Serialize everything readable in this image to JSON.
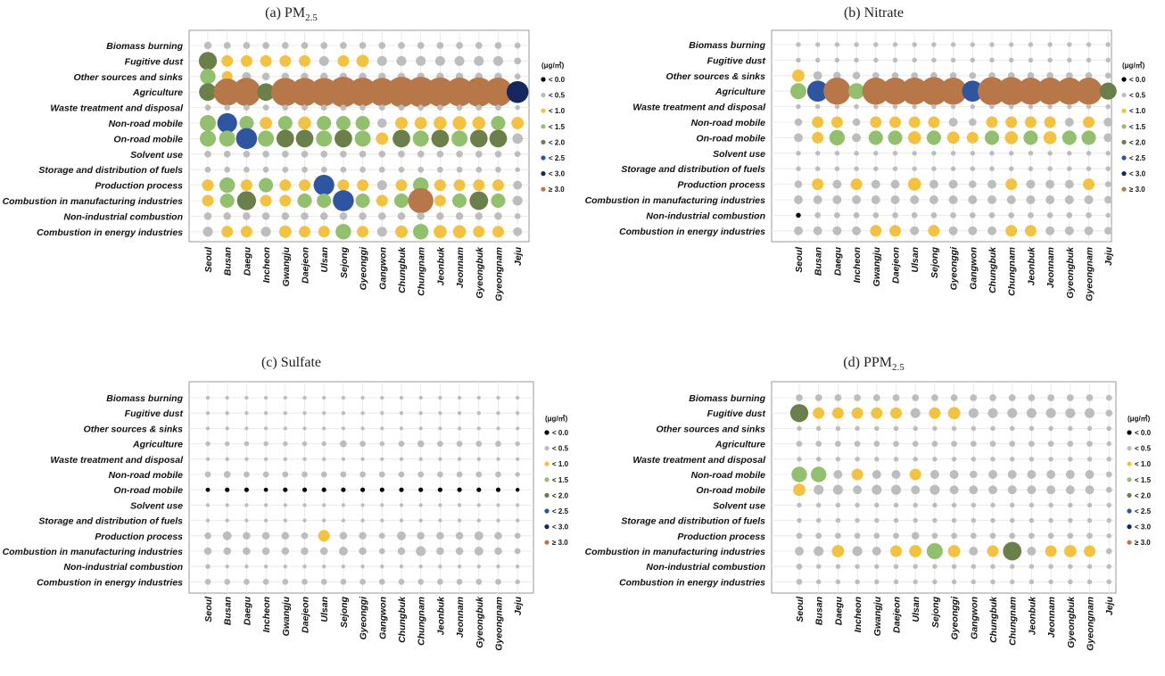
{
  "legend": {
    "unit": "(μg/㎥)",
    "bins": [
      {
        "label": "< 0.0",
        "color": "#000000"
      },
      {
        "label": "< 0.5",
        "color": "#bdbdbd"
      },
      {
        "label": "< 1.0",
        "color": "#f4c242"
      },
      {
        "label": "< 1.5",
        "color": "#92c06e"
      },
      {
        "label": "< 2.0",
        "color": "#6a7f4a"
      },
      {
        "label": "< 2.5",
        "color": "#2f55a0"
      },
      {
        "label": "< 3.0",
        "color": "#15275e"
      },
      {
        "label": "≥ 3.0",
        "color": "#b87748"
      }
    ]
  },
  "categories": [
    "Seoul",
    "Busan",
    "Daegu",
    "Incheon",
    "Gwangju",
    "Daejeon",
    "Ulsan",
    "Sejong",
    "Gyeonggi",
    "Gangwon",
    "Chungbuk",
    "Chungnam",
    "Jeonbuk",
    "Jeonnam",
    "Gyeongbuk",
    "Gyeongnam",
    "Jeju"
  ],
  "chart_data": [
    {
      "type": "bubble",
      "title_main": "(a) PM",
      "title_sub": "2.5",
      "rows": [
        "Biomass burning",
        "Fugitive dust",
        "Other sources and sinks",
        "Agriculture",
        "Waste treatment and disposal",
        "Non-road mobile",
        "On-road mobile",
        "Solvent use",
        "Storage and distribution of fuels",
        "Production process",
        "Combustion in manufacturing industries",
        "Non-industrial combustion",
        "Combustion in energy industries"
      ],
      "values": [
        [
          0.2,
          0.15,
          0.15,
          0.15,
          0.15,
          0.15,
          0.15,
          0.15,
          0.15,
          0.15,
          0.15,
          0.15,
          0.15,
          0.15,
          0.15,
          0.15,
          0.1
        ],
        [
          1.7,
          0.6,
          0.6,
          0.6,
          0.6,
          0.6,
          0.4,
          0.6,
          0.7,
          0.4,
          0.4,
          0.4,
          0.4,
          0.4,
          0.4,
          0.4,
          0.15
        ],
        [
          1.2,
          0.5,
          0.3,
          0.2,
          0.2,
          0.2,
          0.2,
          0.2,
          0.2,
          0.2,
          0.2,
          0.2,
          0.2,
          0.2,
          0.2,
          0.2,
          0.1
        ],
        [
          1.6,
          4.2,
          4.6,
          1.6,
          4.6,
          4.6,
          4.6,
          5.4,
          4.8,
          4.6,
          5.4,
          5.4,
          5.0,
          4.8,
          5.0,
          4.8,
          2.6
        ],
        [
          0.1,
          0.1,
          0.1,
          0.1,
          0.1,
          0.1,
          0.1,
          0.1,
          0.1,
          0.1,
          0.1,
          0.1,
          0.1,
          0.1,
          0.1,
          0.1,
          0.05
        ],
        [
          1.3,
          2.1,
          1.0,
          0.7,
          1.0,
          0.8,
          1.0,
          1.0,
          1.0,
          0.35,
          0.7,
          0.7,
          0.8,
          0.9,
          0.8,
          1.0,
          0.7
        ],
        [
          1.3,
          1.3,
          2.4,
          1.3,
          1.6,
          1.6,
          1.3,
          1.6,
          1.3,
          0.7,
          1.6,
          1.3,
          1.6,
          1.3,
          1.6,
          1.6,
          0.45
        ],
        [
          0.15,
          0.15,
          0.15,
          0.15,
          0.15,
          0.15,
          0.15,
          0.15,
          0.15,
          0.15,
          0.15,
          0.15,
          0.15,
          0.15,
          0.15,
          0.15,
          0.1
        ],
        [
          0.1,
          0.1,
          0.1,
          0.1,
          0.1,
          0.1,
          0.1,
          0.1,
          0.1,
          0.1,
          0.1,
          0.1,
          0.1,
          0.1,
          0.1,
          0.1,
          0.05
        ],
        [
          0.6,
          1.2,
          0.6,
          1.0,
          0.6,
          0.6,
          2.3,
          0.6,
          0.6,
          0.4,
          0.6,
          1.2,
          0.6,
          0.6,
          0.6,
          0.6,
          0.3
        ],
        [
          0.6,
          1.0,
          1.9,
          0.6,
          0.6,
          1.0,
          1.0,
          2.4,
          1.0,
          0.6,
          1.0,
          3.6,
          0.6,
          1.0,
          1.8,
          1.0,
          0.4
        ],
        [
          0.2,
          0.2,
          0.2,
          0.2,
          0.2,
          0.2,
          0.2,
          0.2,
          0.2,
          0.2,
          0.2,
          0.2,
          0.2,
          0.2,
          0.2,
          0.2,
          0.1
        ],
        [
          0.4,
          0.6,
          0.6,
          0.4,
          0.7,
          0.6,
          0.6,
          1.2,
          0.6,
          0.4,
          0.7,
          1.2,
          0.8,
          0.8,
          0.6,
          0.6,
          0.3
        ]
      ]
    },
    {
      "type": "bubble",
      "title_main": "(b) Nitrate",
      "title_sub": "",
      "rows": [
        "Biomass burning",
        "Fugitive dust",
        "Other sources & sinks",
        "Agriculture",
        "Waste treatment and disposal",
        "Non-road mobile",
        "On-road mobile",
        "Solvent use",
        "Storage and distribution of fuels",
        "Production process",
        "Combustion in manufacturing industries",
        "Non-industrial combustion",
        "Combustion in energy industries"
      ],
      "values": [
        [
          0.05,
          0.05,
          0.05,
          0.05,
          0.05,
          0.05,
          0.05,
          0.05,
          0.05,
          0.05,
          0.05,
          0.05,
          0.05,
          0.05,
          0.05,
          0.05,
          0.05
        ],
        [
          0.05,
          0.05,
          0.05,
          0.05,
          0.05,
          0.05,
          0.05,
          0.05,
          0.05,
          0.05,
          0.05,
          0.05,
          0.05,
          0.05,
          0.05,
          0.05,
          0.05
        ],
        [
          0.7,
          0.3,
          0.2,
          0.2,
          0.15,
          0.15,
          0.15,
          0.15,
          0.15,
          0.15,
          0.15,
          0.15,
          0.15,
          0.15,
          0.15,
          0.15,
          0.1
        ],
        [
          1.3,
          2.4,
          4.2,
          1.3,
          4.2,
          4.2,
          4.2,
          4.6,
          4.2,
          2.4,
          4.6,
          4.6,
          4.2,
          4.2,
          4.2,
          4.2,
          1.5
        ],
        [
          0.05,
          0.05,
          0.05,
          0.05,
          0.05,
          0.05,
          0.05,
          0.05,
          0.05,
          0.05,
          0.05,
          0.05,
          0.05,
          0.05,
          0.05,
          0.05,
          0.05
        ],
        [
          0.2,
          0.6,
          0.6,
          0.2,
          0.6,
          0.6,
          0.6,
          0.6,
          0.3,
          0.2,
          0.6,
          0.6,
          0.6,
          0.6,
          0.3,
          0.6,
          0.3
        ],
        [
          0.3,
          0.6,
          1.2,
          0.3,
          1.0,
          1.0,
          0.8,
          1.0,
          0.7,
          0.6,
          1.0,
          0.8,
          1.0,
          0.8,
          1.0,
          1.0,
          0.3
        ],
        [
          0.05,
          0.05,
          0.05,
          0.05,
          0.05,
          0.05,
          0.05,
          0.05,
          0.05,
          0.05,
          0.05,
          0.05,
          0.05,
          0.05,
          0.05,
          0.05,
          0.05
        ],
        [
          0.05,
          0.05,
          0.05,
          0.05,
          0.05,
          0.05,
          0.05,
          0.05,
          0.05,
          0.05,
          0.05,
          0.05,
          0.05,
          0.05,
          0.05,
          0.05,
          0.05
        ],
        [
          0.2,
          0.6,
          0.3,
          0.6,
          0.3,
          0.3,
          0.8,
          0.3,
          0.3,
          0.2,
          0.3,
          0.6,
          0.3,
          0.3,
          0.3,
          0.6,
          0.1
        ],
        [
          0.3,
          0.3,
          0.3,
          0.3,
          0.3,
          0.3,
          0.3,
          0.3,
          0.3,
          0.3,
          0.3,
          0.3,
          0.3,
          0.3,
          0.3,
          0.3,
          0.2
        ],
        [
          -0.05,
          0.1,
          0.1,
          0.1,
          0.1,
          0.1,
          0.1,
          0.1,
          0.1,
          0.1,
          0.1,
          0.1,
          0.1,
          0.1,
          0.1,
          0.1,
          0.05
        ],
        [
          0.3,
          0.3,
          0.3,
          0.3,
          0.6,
          0.6,
          0.3,
          0.6,
          0.3,
          0.3,
          0.3,
          0.6,
          0.6,
          0.3,
          0.3,
          0.3,
          0.2
        ]
      ]
    },
    {
      "type": "bubble",
      "title_main": "(c) Sulfate",
      "title_sub": "",
      "rows": [
        "Biomass burning",
        "Fugitive dust",
        "Other sources & sinks",
        "Agriculture",
        "Waste treatment and disposal",
        "Non-road mobile",
        "On-road mobile",
        "Solvent use",
        "Storage and distribution of fuels",
        "Production process",
        "Combustion in manufacturing industries",
        "Non-industrial combustion",
        "Combustion in energy industries"
      ],
      "values": [
        [
          0.02,
          0.02,
          0.02,
          0.02,
          0.02,
          0.02,
          0.02,
          0.02,
          0.02,
          0.02,
          0.02,
          0.02,
          0.02,
          0.02,
          0.02,
          0.02,
          0.02
        ],
        [
          0.02,
          0.02,
          0.02,
          0.02,
          0.02,
          0.02,
          0.02,
          0.02,
          0.02,
          0.02,
          0.02,
          0.02,
          0.02,
          0.02,
          0.02,
          0.02,
          0.02
        ],
        [
          0.02,
          0.02,
          0.02,
          0.02,
          0.02,
          0.02,
          0.02,
          0.02,
          0.02,
          0.02,
          0.02,
          0.02,
          0.02,
          0.02,
          0.02,
          0.02,
          0.02
        ],
        [
          0.05,
          0.05,
          0.05,
          0.05,
          0.05,
          0.05,
          0.05,
          0.15,
          0.1,
          0.05,
          0.1,
          0.15,
          0.1,
          0.1,
          0.1,
          0.1,
          0.05
        ],
        [
          0.02,
          0.02,
          0.02,
          0.02,
          0.02,
          0.02,
          0.02,
          0.02,
          0.02,
          0.02,
          0.02,
          0.02,
          0.02,
          0.02,
          0.02,
          0.02,
          0.02
        ],
        [
          0.1,
          0.15,
          0.1,
          0.1,
          0.1,
          0.1,
          0.1,
          0.1,
          0.1,
          0.1,
          0.1,
          0.1,
          0.1,
          0.1,
          0.1,
          0.1,
          0.05
        ],
        [
          -0.03,
          -0.04,
          -0.04,
          -0.03,
          -0.04,
          -0.04,
          -0.04,
          -0.04,
          -0.04,
          -0.04,
          -0.04,
          -0.04,
          -0.04,
          -0.04,
          -0.04,
          -0.04,
          -0.02
        ],
        [
          0.02,
          0.02,
          0.02,
          0.02,
          0.02,
          0.02,
          0.02,
          0.02,
          0.02,
          0.02,
          0.02,
          0.02,
          0.02,
          0.02,
          0.02,
          0.02,
          0.02
        ],
        [
          0.02,
          0.02,
          0.02,
          0.02,
          0.02,
          0.02,
          0.02,
          0.02,
          0.02,
          0.02,
          0.02,
          0.02,
          0.02,
          0.02,
          0.02,
          0.02,
          0.02
        ],
        [
          0.15,
          0.3,
          0.2,
          0.2,
          0.2,
          0.15,
          0.6,
          0.2,
          0.2,
          0.1,
          0.3,
          0.2,
          0.2,
          0.2,
          0.3,
          0.2,
          0.1
        ],
        [
          0.2,
          0.2,
          0.2,
          0.2,
          0.2,
          0.2,
          0.2,
          0.3,
          0.2,
          0.1,
          0.2,
          0.4,
          0.2,
          0.2,
          0.3,
          0.2,
          0.1
        ],
        [
          0.05,
          0.02,
          0.02,
          0.02,
          0.02,
          0.02,
          0.02,
          0.02,
          0.02,
          0.02,
          0.02,
          0.02,
          0.02,
          0.02,
          0.02,
          0.02,
          0.02
        ],
        [
          0.1,
          0.1,
          0.1,
          0.1,
          0.1,
          0.1,
          0.1,
          0.1,
          0.1,
          0.1,
          0.1,
          0.1,
          0.1,
          0.1,
          0.1,
          0.1,
          0.05
        ]
      ]
    },
    {
      "type": "bubble",
      "title_main": "(d) PPM",
      "title_sub": "2.5",
      "rows": [
        "Biomass burning",
        "Fugitive dust",
        "Other sources and sinks",
        "Agriculture",
        "Waste treatment and disposal",
        "Non-road mobile",
        "On-road mobile",
        "Solvent use",
        "Storage and distribution of fuels",
        "Production process",
        "Combustion in manufacturing industries",
        "Non-industrial combustion",
        "Combustion in energy industries"
      ],
      "values": [
        [
          0.15,
          0.15,
          0.15,
          0.15,
          0.15,
          0.15,
          0.15,
          0.15,
          0.15,
          0.15,
          0.15,
          0.15,
          0.15,
          0.15,
          0.15,
          0.15,
          0.1
        ],
        [
          1.7,
          0.6,
          0.6,
          0.6,
          0.6,
          0.6,
          0.4,
          0.6,
          0.7,
          0.4,
          0.4,
          0.4,
          0.4,
          0.4,
          0.4,
          0.4,
          0.15
        ],
        [
          0.05,
          0.05,
          0.05,
          0.05,
          0.05,
          0.05,
          0.05,
          0.05,
          0.05,
          0.05,
          0.05,
          0.05,
          0.05,
          0.05,
          0.05,
          0.05,
          0.05
        ],
        [
          0.1,
          0.1,
          0.1,
          0.1,
          0.1,
          0.1,
          0.1,
          0.1,
          0.1,
          0.1,
          0.1,
          0.1,
          0.1,
          0.1,
          0.1,
          0.1,
          0.05
        ],
        [
          0.05,
          0.05,
          0.05,
          0.05,
          0.05,
          0.05,
          0.05,
          0.05,
          0.05,
          0.05,
          0.05,
          0.05,
          0.05,
          0.05,
          0.05,
          0.05,
          0.05
        ],
        [
          1.2,
          1.2,
          0.3,
          0.6,
          0.3,
          0.3,
          0.6,
          0.3,
          0.3,
          0.2,
          0.3,
          0.3,
          0.3,
          0.3,
          0.3,
          0.3,
          0.1
        ],
        [
          0.7,
          0.4,
          0.4,
          0.3,
          0.4,
          0.4,
          0.3,
          0.4,
          0.3,
          0.3,
          0.3,
          0.3,
          0.3,
          0.3,
          0.3,
          0.3,
          0.1
        ],
        [
          0.05,
          0.05,
          0.05,
          0.05,
          0.05,
          0.05,
          0.05,
          0.05,
          0.05,
          0.05,
          0.05,
          0.05,
          0.05,
          0.05,
          0.05,
          0.05,
          0.05
        ],
        [
          0.05,
          0.05,
          0.05,
          0.05,
          0.05,
          0.05,
          0.05,
          0.05,
          0.05,
          0.05,
          0.05,
          0.05,
          0.05,
          0.05,
          0.05,
          0.05,
          0.05
        ],
        [
          0.1,
          0.1,
          0.1,
          0.1,
          0.1,
          0.1,
          0.2,
          0.1,
          0.1,
          0.1,
          0.1,
          0.1,
          0.1,
          0.1,
          0.1,
          0.1,
          0.05
        ],
        [
          0.3,
          0.4,
          0.7,
          0.4,
          0.3,
          0.6,
          0.7,
          1.3,
          0.7,
          0.3,
          0.6,
          1.8,
          0.3,
          0.6,
          0.7,
          0.6,
          0.1
        ],
        [
          0.1,
          0.05,
          0.05,
          0.05,
          0.05,
          0.05,
          0.05,
          0.05,
          0.05,
          0.05,
          0.05,
          0.05,
          0.05,
          0.05,
          0.05,
          0.05,
          0.05
        ],
        [
          0.1,
          0.05,
          0.05,
          0.05,
          0.05,
          0.05,
          0.05,
          0.05,
          0.05,
          0.05,
          0.05,
          0.05,
          0.05,
          0.05,
          0.05,
          0.05,
          0.05
        ]
      ]
    }
  ]
}
